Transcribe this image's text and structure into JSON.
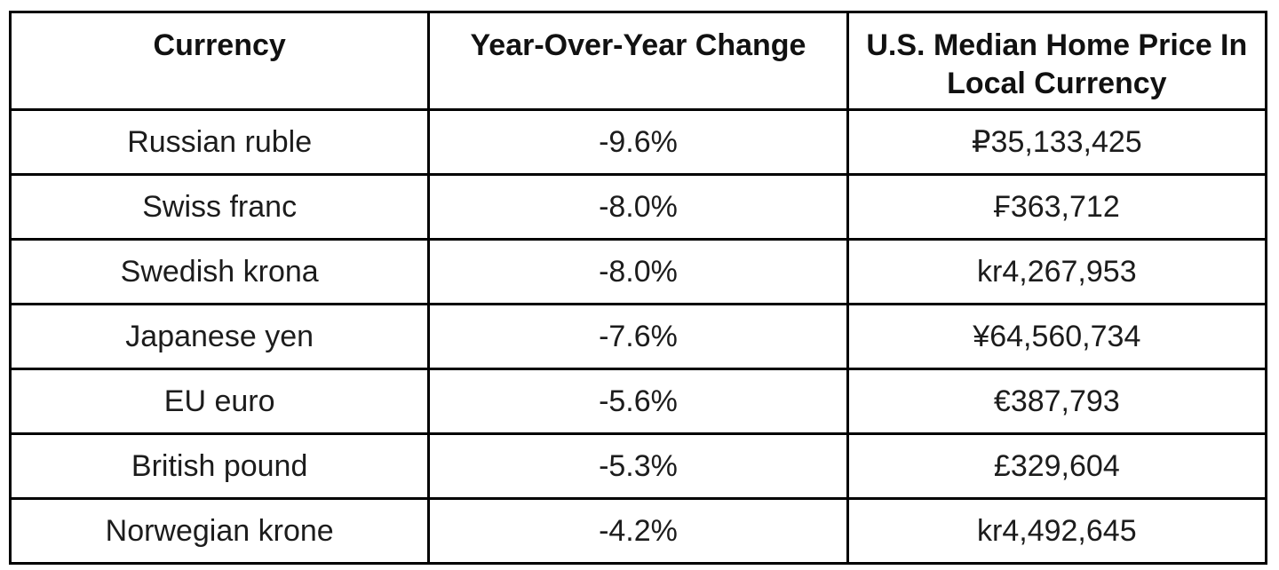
{
  "chart_data": {
    "type": "table",
    "columns": [
      "Currency",
      "Year-Over-Year Change",
      "U.S. Median Home Price In Local Currency"
    ],
    "rows": [
      [
        "Russian ruble",
        "-9.6%",
        "₽35,133,425"
      ],
      [
        "Swiss franc",
        "-8.0%",
        "₣363,712"
      ],
      [
        "Swedish krona",
        "-8.0%",
        "kr4,267,953"
      ],
      [
        "Japanese yen",
        "-7.6%",
        "¥64,560,734"
      ],
      [
        "EU euro",
        "-5.6%",
        "€387,793"
      ],
      [
        "British pound",
        "-5.3%",
        "£329,604"
      ],
      [
        "Norwegian krone",
        "-4.2%",
        "kr4,492,645"
      ]
    ],
    "layout": {
      "grid": "on",
      "header_position": "top",
      "column_count": 3,
      "row_count": 7
    },
    "colors": {
      "border": "#000000",
      "header_text": "#111111",
      "body_text": "#1c1c1c",
      "background": "#ffffff"
    }
  }
}
